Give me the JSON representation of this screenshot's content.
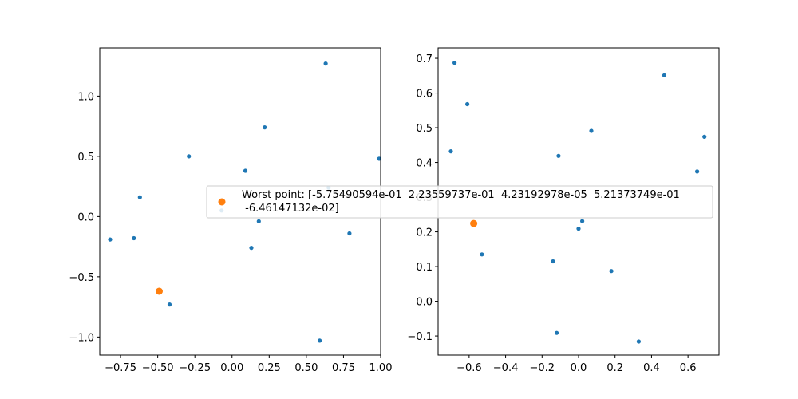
{
  "colors": {
    "points": "#1f77b4",
    "worst": "#ff7f0e",
    "axes": "#000000",
    "legend_border": "#cccccc"
  },
  "legend": {
    "line1": "Worst point: [-5.75490594e-01  2.23559737e-01  4.23192978e-05  5.21373749e-01",
    "line2": " -6.46147132e-02]"
  },
  "chart_data": [
    {
      "type": "scatter",
      "title": "",
      "xlabel": "",
      "ylabel": "",
      "xlim": [
        -0.89,
        1.0
      ],
      "ylim": [
        -1.15,
        1.4
      ],
      "grid": false,
      "xticks": [
        -0.75,
        -0.5,
        -0.25,
        0.0,
        0.25,
        0.5,
        0.75,
        1.0
      ],
      "xtick_labels": [
        "−0.75",
        "−0.50",
        "−0.25",
        "0.00",
        "0.25",
        "0.50",
        "0.75",
        "1.00"
      ],
      "yticks": [
        -1.0,
        -0.5,
        0.0,
        0.5,
        1.0
      ],
      "ytick_labels": [
        "−1.0",
        "−0.5",
        "0.0",
        "0.5",
        "1.0"
      ],
      "series": [
        {
          "points": [
            {
              "x": 0.63,
              "y": 1.27
            },
            {
              "x": 0.22,
              "y": 0.74
            },
            {
              "x": -0.29,
              "y": 0.5
            },
            {
              "x": 0.99,
              "y": 0.48
            },
            {
              "x": 0.09,
              "y": 0.38
            },
            {
              "x": 0.65,
              "y": 0.24
            },
            {
              "x": -0.62,
              "y": 0.16
            },
            {
              "x": -0.07,
              "y": 0.05
            },
            {
              "x": 0.18,
              "y": -0.04
            },
            {
              "x": 0.79,
              "y": -0.14
            },
            {
              "x": -0.82,
              "y": -0.19
            },
            {
              "x": -0.66,
              "y": -0.18
            },
            {
              "x": 0.13,
              "y": -0.26
            },
            {
              "x": -0.42,
              "y": -0.73
            },
            {
              "x": 0.59,
              "y": -1.03
            }
          ]
        },
        {
          "points": [
            {
              "x": -0.49,
              "y": -0.62
            }
          ]
        }
      ]
    },
    {
      "type": "scatter",
      "title": "",
      "xlabel": "",
      "ylabel": "",
      "xlim": [
        -0.77,
        0.77
      ],
      "ylim": [
        -0.155,
        0.73
      ],
      "grid": false,
      "xticks": [
        -0.6,
        -0.4,
        -0.2,
        0.0,
        0.2,
        0.4,
        0.6
      ],
      "xtick_labels": [
        "−0.6",
        "−0.4",
        "−0.2",
        "0.0",
        "0.2",
        "0.4",
        "0.6"
      ],
      "yticks": [
        -0.1,
        0.0,
        0.1,
        0.2,
        0.3,
        0.4,
        0.5,
        0.6,
        0.7
      ],
      "ytick_labels": [
        "−0.1",
        "0.0",
        "0.1",
        "0.2",
        "0.3",
        "0.4",
        "0.5",
        "0.6",
        "0.7"
      ],
      "series": [
        {
          "points": [
            {
              "x": -0.68,
              "y": 0.687
            },
            {
              "x": 0.47,
              "y": 0.651
            },
            {
              "x": -0.61,
              "y": 0.568
            },
            {
              "x": 0.07,
              "y": 0.491
            },
            {
              "x": 0.69,
              "y": 0.474
            },
            {
              "x": -0.7,
              "y": 0.432
            },
            {
              "x": -0.11,
              "y": 0.419
            },
            {
              "x": 0.65,
              "y": 0.374
            },
            {
              "x": 0.02,
              "y": 0.231
            },
            {
              "x": 0.0,
              "y": 0.209
            },
            {
              "x": -0.53,
              "y": 0.135
            },
            {
              "x": -0.14,
              "y": 0.115
            },
            {
              "x": 0.18,
              "y": 0.087
            },
            {
              "x": -0.12,
              "y": -0.091
            },
            {
              "x": 0.33,
              "y": -0.116
            }
          ]
        },
        {
          "points": [
            {
              "x": -0.575,
              "y": 0.224
            }
          ]
        }
      ]
    }
  ]
}
